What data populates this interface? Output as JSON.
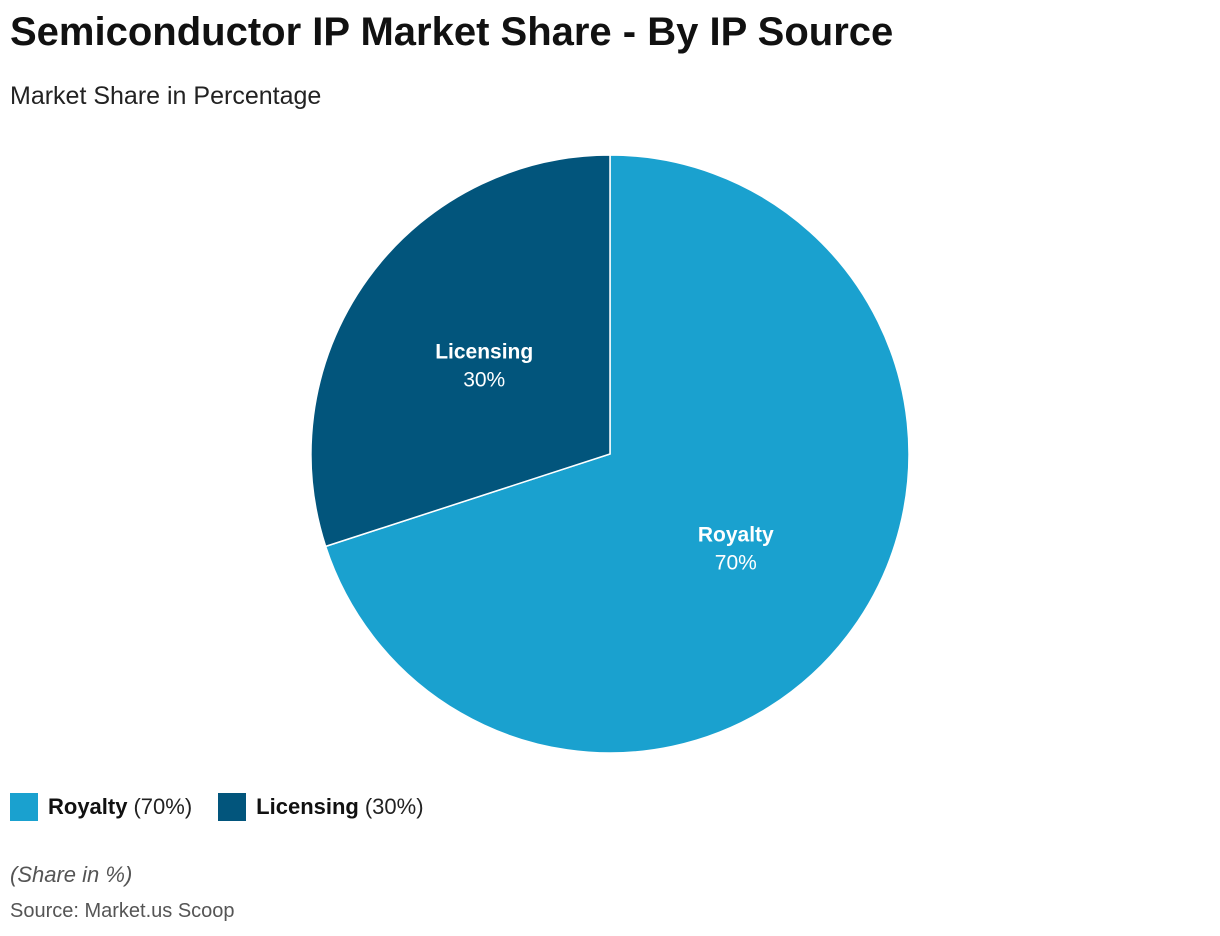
{
  "chart_data": {
    "type": "pie",
    "title": "Semiconductor IP Market Share - By IP Source",
    "subtitle": "Market Share in Percentage",
    "slices": [
      {
        "label": "Royalty",
        "value": 70,
        "value_label": "70%",
        "color": "#1aa1cf"
      },
      {
        "label": "Licensing",
        "value": 30,
        "value_label": "30%",
        "color": "#02557c"
      }
    ],
    "legend_placement": "bottom-left"
  },
  "legend": {
    "items": [
      {
        "name": "Royalty",
        "pct": "(70%)",
        "color": "#1aa1cf"
      },
      {
        "name": "Licensing",
        "pct": "(30%)",
        "color": "#02557c"
      }
    ]
  },
  "footer": {
    "note": "(Share in %)",
    "source": "Source: Market.us Scoop"
  }
}
